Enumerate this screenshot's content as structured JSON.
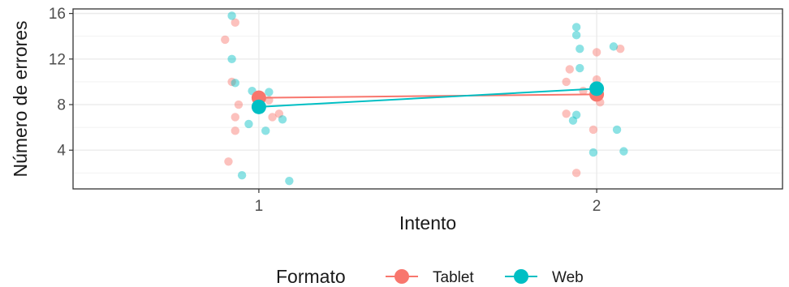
{
  "chart_data": {
    "type": "scatter",
    "xlabel": "Intento",
    "ylabel": "Número de errores",
    "x_categories": [
      "1",
      "2"
    ],
    "xlim": [
      0.45,
      2.55
    ],
    "ylim": [
      0.6,
      16.4
    ],
    "y_ticks": [
      4,
      8,
      12,
      16
    ],
    "grid": true,
    "legend": {
      "title": "Formato",
      "position": "bottom"
    },
    "series": [
      {
        "name": "Tablet",
        "color": "#F8766D",
        "mean": [
          {
            "x": 1,
            "y": 8.6
          },
          {
            "x": 2,
            "y": 8.9
          }
        ],
        "points": [
          {
            "x": 0.9,
            "y": 13.7
          },
          {
            "x": 0.93,
            "y": 15.2
          },
          {
            "x": 0.92,
            "y": 10.0
          },
          {
            "x": 0.94,
            "y": 8.0
          },
          {
            "x": 0.93,
            "y": 6.9
          },
          {
            "x": 0.93,
            "y": 5.7
          },
          {
            "x": 0.91,
            "y": 3.0
          },
          {
            "x": 1.03,
            "y": 8.4
          },
          {
            "x": 1.06,
            "y": 7.2
          },
          {
            "x": 1.04,
            "y": 6.9
          },
          {
            "x": 1.91,
            "y": 10.0
          },
          {
            "x": 1.92,
            "y": 11.1
          },
          {
            "x": 1.91,
            "y": 7.2
          },
          {
            "x": 1.96,
            "y": 9.2
          },
          {
            "x": 2.0,
            "y": 10.2
          },
          {
            "x": 2.0,
            "y": 12.6
          },
          {
            "x": 2.07,
            "y": 12.9
          },
          {
            "x": 2.01,
            "y": 8.2
          },
          {
            "x": 1.99,
            "y": 5.8
          },
          {
            "x": 1.94,
            "y": 2.0
          }
        ]
      },
      {
        "name": "Web",
        "color": "#00BFC4",
        "mean": [
          {
            "x": 1,
            "y": 7.8
          },
          {
            "x": 2,
            "y": 9.4
          }
        ],
        "points": [
          {
            "x": 0.92,
            "y": 15.8
          },
          {
            "x": 0.92,
            "y": 12.0
          },
          {
            "x": 0.93,
            "y": 9.9
          },
          {
            "x": 0.98,
            "y": 9.2
          },
          {
            "x": 1.03,
            "y": 9.1
          },
          {
            "x": 0.97,
            "y": 6.3
          },
          {
            "x": 1.02,
            "y": 5.7
          },
          {
            "x": 1.07,
            "y": 6.7
          },
          {
            "x": 0.95,
            "y": 1.8
          },
          {
            "x": 1.09,
            "y": 1.3
          },
          {
            "x": 1.94,
            "y": 14.8
          },
          {
            "x": 1.94,
            "y": 14.1
          },
          {
            "x": 1.95,
            "y": 12.9
          },
          {
            "x": 1.95,
            "y": 11.2
          },
          {
            "x": 1.94,
            "y": 7.1
          },
          {
            "x": 1.93,
            "y": 6.6
          },
          {
            "x": 2.05,
            "y": 13.1
          },
          {
            "x": 2.06,
            "y": 5.8
          },
          {
            "x": 1.99,
            "y": 3.8
          },
          {
            "x": 2.08,
            "y": 3.9
          }
        ]
      }
    ]
  }
}
